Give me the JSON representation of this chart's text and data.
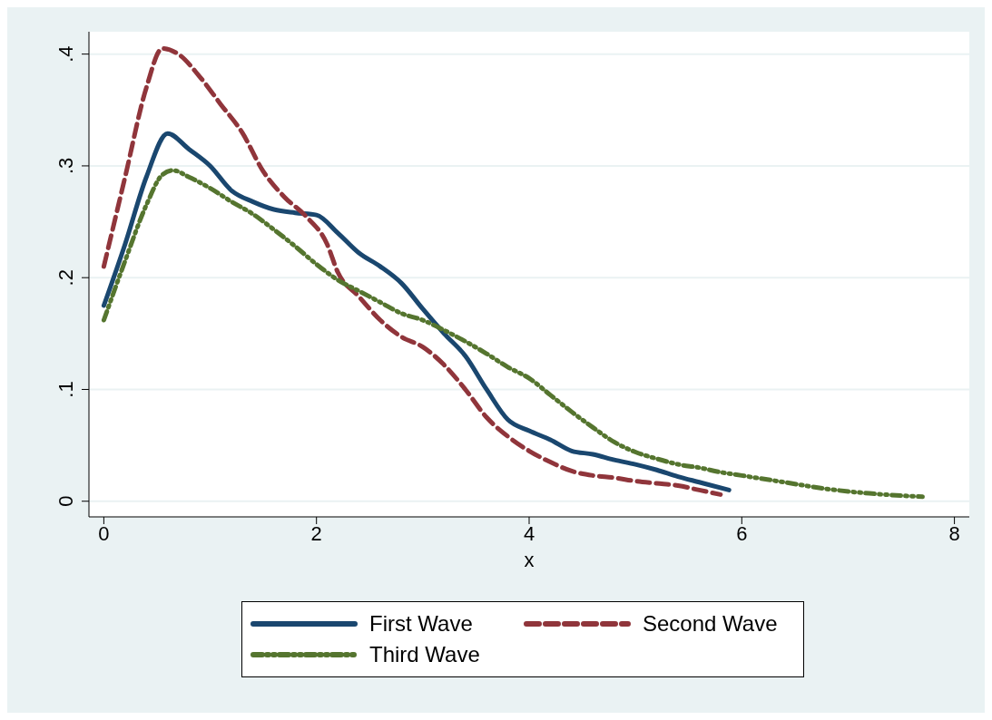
{
  "chart_data": {
    "type": "line",
    "xlabel": "x",
    "xlim": [
      -0.14,
      8.14
    ],
    "xticks": [
      0,
      2,
      4,
      6,
      8
    ],
    "ylim": [
      -0.014,
      0.42
    ],
    "yticks": [
      {
        "value": 0,
        "label": "0"
      },
      {
        "value": 0.1,
        "label": ".1"
      },
      {
        "value": 0.2,
        "label": ".2"
      },
      {
        "value": 0.3,
        "label": ".3"
      },
      {
        "value": 0.4,
        "label": ".4"
      }
    ],
    "grid": "y",
    "legend": "bottom",
    "marker": "none",
    "series": [
      {
        "name": "First Wave",
        "color": "#1a476f",
        "line_style": "solid",
        "x": [
          0,
          0.2,
          0.4,
          0.6,
          0.8,
          1.0,
          1.2,
          1.4,
          1.6,
          1.8,
          2.0,
          2.2,
          2.4,
          2.6,
          2.8,
          3.0,
          3.2,
          3.4,
          3.6,
          3.8,
          4.0,
          4.2,
          4.4,
          4.6,
          4.8,
          5.0,
          5.2,
          5.4,
          5.6,
          5.88
        ],
        "values": [
          0.175,
          0.23,
          0.29,
          0.329,
          0.315,
          0.3,
          0.278,
          0.268,
          0.261,
          0.258,
          0.256,
          0.24,
          0.222,
          0.21,
          0.195,
          0.172,
          0.15,
          0.13,
          0.1,
          0.073,
          0.063,
          0.055,
          0.045,
          0.042,
          0.037,
          0.033,
          0.028,
          0.022,
          0.017,
          0.01
        ]
      },
      {
        "name": "Second Wave",
        "color": "#90353b",
        "line_style": "dashed",
        "x": [
          0,
          0.2,
          0.4,
          0.55,
          0.7,
          0.9,
          1.1,
          1.3,
          1.5,
          1.7,
          1.9,
          2.1,
          2.2,
          2.4,
          2.6,
          2.8,
          3.0,
          3.2,
          3.4,
          3.6,
          3.8,
          4.0,
          4.2,
          4.4,
          4.6,
          4.8,
          5.0,
          5.2,
          5.4,
          5.6,
          5.8
        ],
        "values": [
          0.21,
          0.29,
          0.37,
          0.405,
          0.4,
          0.38,
          0.355,
          0.33,
          0.295,
          0.272,
          0.255,
          0.23,
          0.205,
          0.183,
          0.162,
          0.147,
          0.138,
          0.122,
          0.1,
          0.075,
          0.058,
          0.045,
          0.035,
          0.027,
          0.023,
          0.021,
          0.018,
          0.016,
          0.014,
          0.01,
          0.006
        ]
      },
      {
        "name": "Third Wave",
        "color": "#55752f",
        "line_style": "dotted",
        "x": [
          0,
          0.2,
          0.4,
          0.55,
          0.65,
          0.8,
          1.0,
          1.2,
          1.4,
          1.6,
          1.8,
          2.0,
          2.2,
          2.4,
          2.6,
          2.8,
          3.0,
          3.2,
          3.4,
          3.6,
          3.8,
          4.0,
          4.2,
          4.4,
          4.6,
          4.8,
          5.0,
          5.2,
          5.4,
          5.6,
          5.8,
          6.0,
          6.4,
          6.8,
          7.2,
          7.7
        ],
        "values": [
          0.162,
          0.215,
          0.265,
          0.292,
          0.296,
          0.29,
          0.28,
          0.268,
          0.257,
          0.243,
          0.228,
          0.212,
          0.198,
          0.188,
          0.178,
          0.168,
          0.162,
          0.153,
          0.143,
          0.132,
          0.12,
          0.11,
          0.095,
          0.08,
          0.066,
          0.053,
          0.044,
          0.038,
          0.033,
          0.03,
          0.026,
          0.023,
          0.017,
          0.011,
          0.007,
          0.004
        ]
      }
    ]
  }
}
